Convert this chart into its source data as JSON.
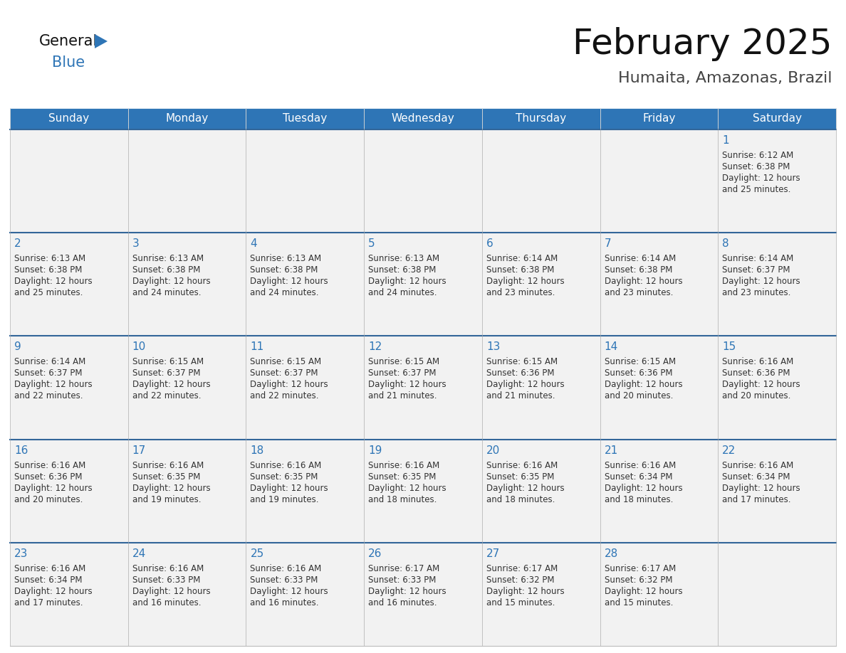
{
  "title": "February 2025",
  "subtitle": "Humaita, Amazonas, Brazil",
  "header_bg": "#2E75B6",
  "header_text_color": "#FFFFFF",
  "cell_bg_light": "#F2F2F2",
  "cell_bg_white": "#FFFFFF",
  "cell_border_color": "#BBBBBB",
  "row_top_line_color": "#336699",
  "day_number_color": "#2E75B6",
  "cell_text_color": "#333333",
  "days_of_week": [
    "Sunday",
    "Monday",
    "Tuesday",
    "Wednesday",
    "Thursday",
    "Friday",
    "Saturday"
  ],
  "title_color": "#111111",
  "subtitle_color": "#444444",
  "logo_general_color": "#111111",
  "logo_blue_color": "#2E75B6",
  "calendar_data": [
    [
      {
        "day": null,
        "info": null
      },
      {
        "day": null,
        "info": null
      },
      {
        "day": null,
        "info": null
      },
      {
        "day": null,
        "info": null
      },
      {
        "day": null,
        "info": null
      },
      {
        "day": null,
        "info": null
      },
      {
        "day": 1,
        "info": "Sunrise: 6:12 AM\nSunset: 6:38 PM\nDaylight: 12 hours\nand 25 minutes."
      }
    ],
    [
      {
        "day": 2,
        "info": "Sunrise: 6:13 AM\nSunset: 6:38 PM\nDaylight: 12 hours\nand 25 minutes."
      },
      {
        "day": 3,
        "info": "Sunrise: 6:13 AM\nSunset: 6:38 PM\nDaylight: 12 hours\nand 24 minutes."
      },
      {
        "day": 4,
        "info": "Sunrise: 6:13 AM\nSunset: 6:38 PM\nDaylight: 12 hours\nand 24 minutes."
      },
      {
        "day": 5,
        "info": "Sunrise: 6:13 AM\nSunset: 6:38 PM\nDaylight: 12 hours\nand 24 minutes."
      },
      {
        "day": 6,
        "info": "Sunrise: 6:14 AM\nSunset: 6:38 PM\nDaylight: 12 hours\nand 23 minutes."
      },
      {
        "day": 7,
        "info": "Sunrise: 6:14 AM\nSunset: 6:38 PM\nDaylight: 12 hours\nand 23 minutes."
      },
      {
        "day": 8,
        "info": "Sunrise: 6:14 AM\nSunset: 6:37 PM\nDaylight: 12 hours\nand 23 minutes."
      }
    ],
    [
      {
        "day": 9,
        "info": "Sunrise: 6:14 AM\nSunset: 6:37 PM\nDaylight: 12 hours\nand 22 minutes."
      },
      {
        "day": 10,
        "info": "Sunrise: 6:15 AM\nSunset: 6:37 PM\nDaylight: 12 hours\nand 22 minutes."
      },
      {
        "day": 11,
        "info": "Sunrise: 6:15 AM\nSunset: 6:37 PM\nDaylight: 12 hours\nand 22 minutes."
      },
      {
        "day": 12,
        "info": "Sunrise: 6:15 AM\nSunset: 6:37 PM\nDaylight: 12 hours\nand 21 minutes."
      },
      {
        "day": 13,
        "info": "Sunrise: 6:15 AM\nSunset: 6:36 PM\nDaylight: 12 hours\nand 21 minutes."
      },
      {
        "day": 14,
        "info": "Sunrise: 6:15 AM\nSunset: 6:36 PM\nDaylight: 12 hours\nand 20 minutes."
      },
      {
        "day": 15,
        "info": "Sunrise: 6:16 AM\nSunset: 6:36 PM\nDaylight: 12 hours\nand 20 minutes."
      }
    ],
    [
      {
        "day": 16,
        "info": "Sunrise: 6:16 AM\nSunset: 6:36 PM\nDaylight: 12 hours\nand 20 minutes."
      },
      {
        "day": 17,
        "info": "Sunrise: 6:16 AM\nSunset: 6:35 PM\nDaylight: 12 hours\nand 19 minutes."
      },
      {
        "day": 18,
        "info": "Sunrise: 6:16 AM\nSunset: 6:35 PM\nDaylight: 12 hours\nand 19 minutes."
      },
      {
        "day": 19,
        "info": "Sunrise: 6:16 AM\nSunset: 6:35 PM\nDaylight: 12 hours\nand 18 minutes."
      },
      {
        "day": 20,
        "info": "Sunrise: 6:16 AM\nSunset: 6:35 PM\nDaylight: 12 hours\nand 18 minutes."
      },
      {
        "day": 21,
        "info": "Sunrise: 6:16 AM\nSunset: 6:34 PM\nDaylight: 12 hours\nand 18 minutes."
      },
      {
        "day": 22,
        "info": "Sunrise: 6:16 AM\nSunset: 6:34 PM\nDaylight: 12 hours\nand 17 minutes."
      }
    ],
    [
      {
        "day": 23,
        "info": "Sunrise: 6:16 AM\nSunset: 6:34 PM\nDaylight: 12 hours\nand 17 minutes."
      },
      {
        "day": 24,
        "info": "Sunrise: 6:16 AM\nSunset: 6:33 PM\nDaylight: 12 hours\nand 16 minutes."
      },
      {
        "day": 25,
        "info": "Sunrise: 6:16 AM\nSunset: 6:33 PM\nDaylight: 12 hours\nand 16 minutes."
      },
      {
        "day": 26,
        "info": "Sunrise: 6:17 AM\nSunset: 6:33 PM\nDaylight: 12 hours\nand 16 minutes."
      },
      {
        "day": 27,
        "info": "Sunrise: 6:17 AM\nSunset: 6:32 PM\nDaylight: 12 hours\nand 15 minutes."
      },
      {
        "day": 28,
        "info": "Sunrise: 6:17 AM\nSunset: 6:32 PM\nDaylight: 12 hours\nand 15 minutes."
      },
      {
        "day": null,
        "info": null
      }
    ]
  ]
}
